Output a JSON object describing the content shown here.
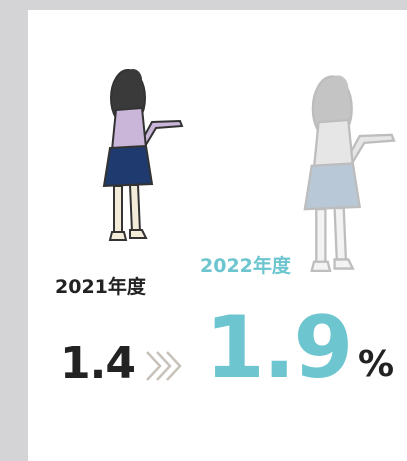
{
  "labels": {
    "year_prev": "2021年度",
    "year_curr": "2022年度"
  },
  "values": {
    "prev": 1.4,
    "curr": 1.9
  },
  "unit": "%"
}
